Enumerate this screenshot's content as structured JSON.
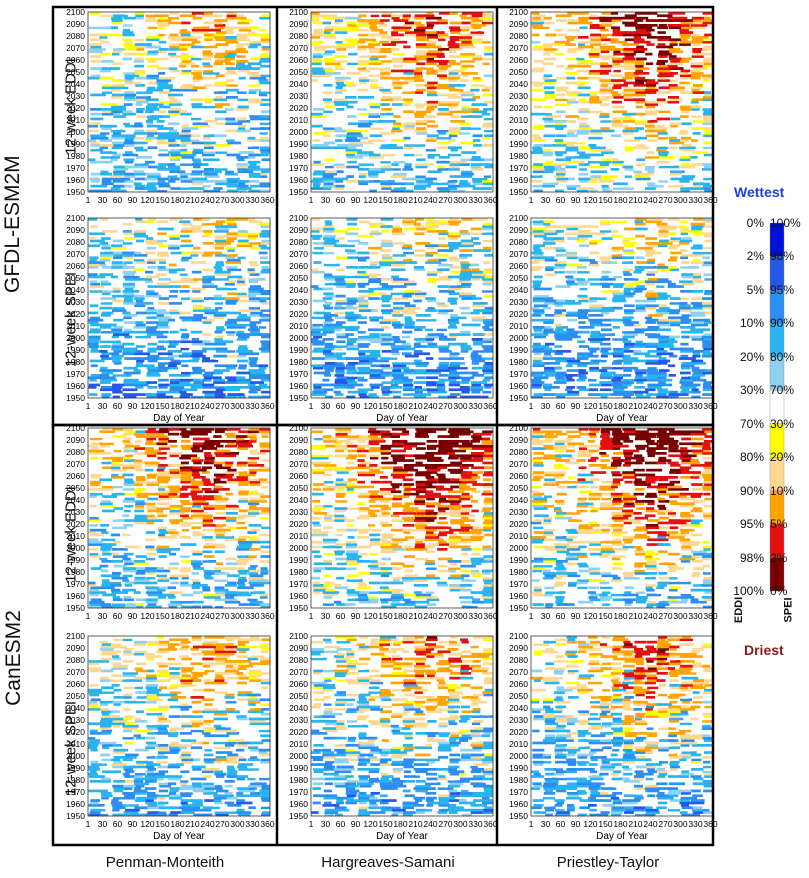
{
  "model_labels": [
    "GFDL-ESM2M",
    "CanESM2"
  ],
  "row_labels": [
    "12-week EDDI",
    "12-week SPEI",
    "12-week EDDI",
    "12-week SPEI"
  ],
  "column_labels": [
    "Penman-Monteith",
    "Hargreaves-Samani",
    "Priestley-Taylor"
  ],
  "legend": {
    "wettest": "Wettest",
    "driest": "Driest",
    "eddi_axis": "EDDI",
    "spei_axis": "SPEI",
    "eddi_ticks": [
      "0%",
      "2%",
      "5%",
      "10%",
      "20%",
      "30%",
      "70%",
      "80%",
      "90%",
      "95%",
      "98%",
      "100%"
    ],
    "spei_ticks": [
      "100%",
      "98%",
      "95%",
      "90%",
      "80%",
      "70%",
      "30%",
      "20%",
      "10%",
      "5%",
      "2%",
      "0%"
    ],
    "colors": [
      "#0010d8",
      "#2458e6",
      "#2c8ef0",
      "#28b4ee",
      "#8ed0f0",
      "#ffffff",
      "#ffff00",
      "#ffd890",
      "#ffa400",
      "#e41010",
      "#7a0000"
    ],
    "wettest_color": "#1e3ee8",
    "driest_color": "#8b1a1a"
  },
  "chart_data": {
    "type": "heatmap",
    "xlabel": "Day of Year",
    "x_ticks": [
      1,
      30,
      60,
      90,
      120,
      150,
      180,
      210,
      240,
      270,
      300,
      330,
      360
    ],
    "y_ticks": [
      2100,
      2090,
      2080,
      2070,
      2060,
      2050,
      2040,
      2030,
      2020,
      2010,
      2000,
      1990,
      1980,
      1970,
      1960,
      1950
    ],
    "xlim": [
      1,
      365
    ],
    "ylim": [
      1950,
      2100
    ],
    "panels": [
      {
        "model": "GFDL-ESM2M",
        "index": "12-week EDDI",
        "method": "Penman-Monteith",
        "dry_intensity": 0.35,
        "wet_intensity": 0.35
      },
      {
        "model": "GFDL-ESM2M",
        "index": "12-week EDDI",
        "method": "Hargreaves-Samani",
        "dry_intensity": 0.55,
        "wet_intensity": 0.25
      },
      {
        "model": "GFDL-ESM2M",
        "index": "12-week EDDI",
        "method": "Priestley-Taylor",
        "dry_intensity": 0.75,
        "wet_intensity": 0.2
      },
      {
        "model": "GFDL-ESM2M",
        "index": "12-week SPEI",
        "method": "Penman-Monteith",
        "dry_intensity": 0.25,
        "wet_intensity": 0.5
      },
      {
        "model": "GFDL-ESM2M",
        "index": "12-week SPEI",
        "method": "Hargreaves-Samani",
        "dry_intensity": 0.25,
        "wet_intensity": 0.5
      },
      {
        "model": "GFDL-ESM2M",
        "index": "12-week SPEI",
        "method": "Priestley-Taylor",
        "dry_intensity": 0.25,
        "wet_intensity": 0.5
      },
      {
        "model": "CanESM2",
        "index": "12-week EDDI",
        "method": "Penman-Monteith",
        "dry_intensity": 0.7,
        "wet_intensity": 0.3
      },
      {
        "model": "CanESM2",
        "index": "12-week EDDI",
        "method": "Hargreaves-Samani",
        "dry_intensity": 0.95,
        "wet_intensity": 0.2
      },
      {
        "model": "CanESM2",
        "index": "12-week EDDI",
        "method": "Priestley-Taylor",
        "dry_intensity": 0.9,
        "wet_intensity": 0.25
      },
      {
        "model": "CanESM2",
        "index": "12-week SPEI",
        "method": "Penman-Monteith",
        "dry_intensity": 0.4,
        "wet_intensity": 0.4
      },
      {
        "model": "CanESM2",
        "index": "12-week SPEI",
        "method": "Hargreaves-Samani",
        "dry_intensity": 0.45,
        "wet_intensity": 0.4
      },
      {
        "model": "CanESM2",
        "index": "12-week SPEI",
        "method": "Priestley-Taylor",
        "dry_intensity": 0.5,
        "wet_intensity": 0.4
      }
    ]
  }
}
